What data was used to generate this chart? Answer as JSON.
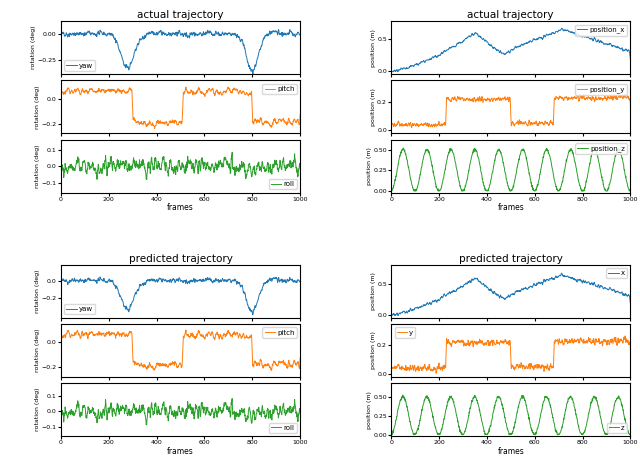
{
  "title_top_left": "actual trajectory",
  "title_top_right": "actual trajectory",
  "title_bot_left": "predicted trajectory",
  "title_bot_right": "predicted trajectory",
  "xlim": [
    0,
    1000
  ],
  "xlabel": "frames",
  "colors": {
    "blue": "#1f77b4",
    "orange": "#ff7f0e",
    "green": "#2ca02c"
  },
  "rot_labels_actual": [
    "yaw",
    "pitch",
    "roll"
  ],
  "pos_labels_actual": [
    "position_x",
    "position_y",
    "position_z"
  ],
  "rot_labels_pred": [
    "yaw",
    "pitch",
    "roll"
  ],
  "pos_labels_pred": [
    "x",
    "y",
    "z"
  ],
  "ylabel_rotation": "rotation (deg)",
  "ylabel_position": "position (m)",
  "seed": 42
}
